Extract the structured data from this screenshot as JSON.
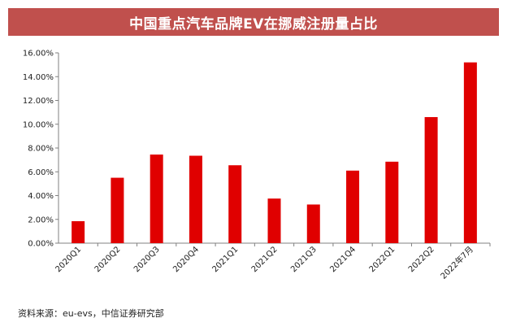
{
  "header": {
    "title": "中国重点汽车品牌EV在挪威注册量占比"
  },
  "source": {
    "text": "资料来源：eu-evs，中信证券研究部"
  },
  "colors": {
    "title_bg": "#c0504d",
    "bar": "#e00000",
    "axis": "#808080"
  },
  "chart_data": {
    "type": "bar",
    "title": "中国重点汽车品牌EV在挪威注册量占比",
    "xlabel": "",
    "ylabel": "",
    "ylim": [
      0,
      16
    ],
    "yticks": [
      0,
      2,
      4,
      6,
      8,
      10,
      12,
      14,
      16
    ],
    "ytick_labels": [
      "0.00%",
      "2.00%",
      "4.00%",
      "6.00%",
      "8.00%",
      "10.00%",
      "12.00%",
      "14.00%",
      "16.00%"
    ],
    "categories": [
      "2020Q1",
      "2020Q2",
      "2020Q3",
      "2020Q4",
      "2021Q1",
      "2021Q2",
      "2021Q3",
      "2021Q4",
      "2022Q1",
      "2022Q2",
      "2022年7月"
    ],
    "values": [
      1.85,
      5.5,
      7.45,
      7.35,
      6.55,
      3.75,
      3.25,
      6.1,
      6.85,
      10.6,
      15.2
    ],
    "grid": false,
    "legend": "none"
  }
}
